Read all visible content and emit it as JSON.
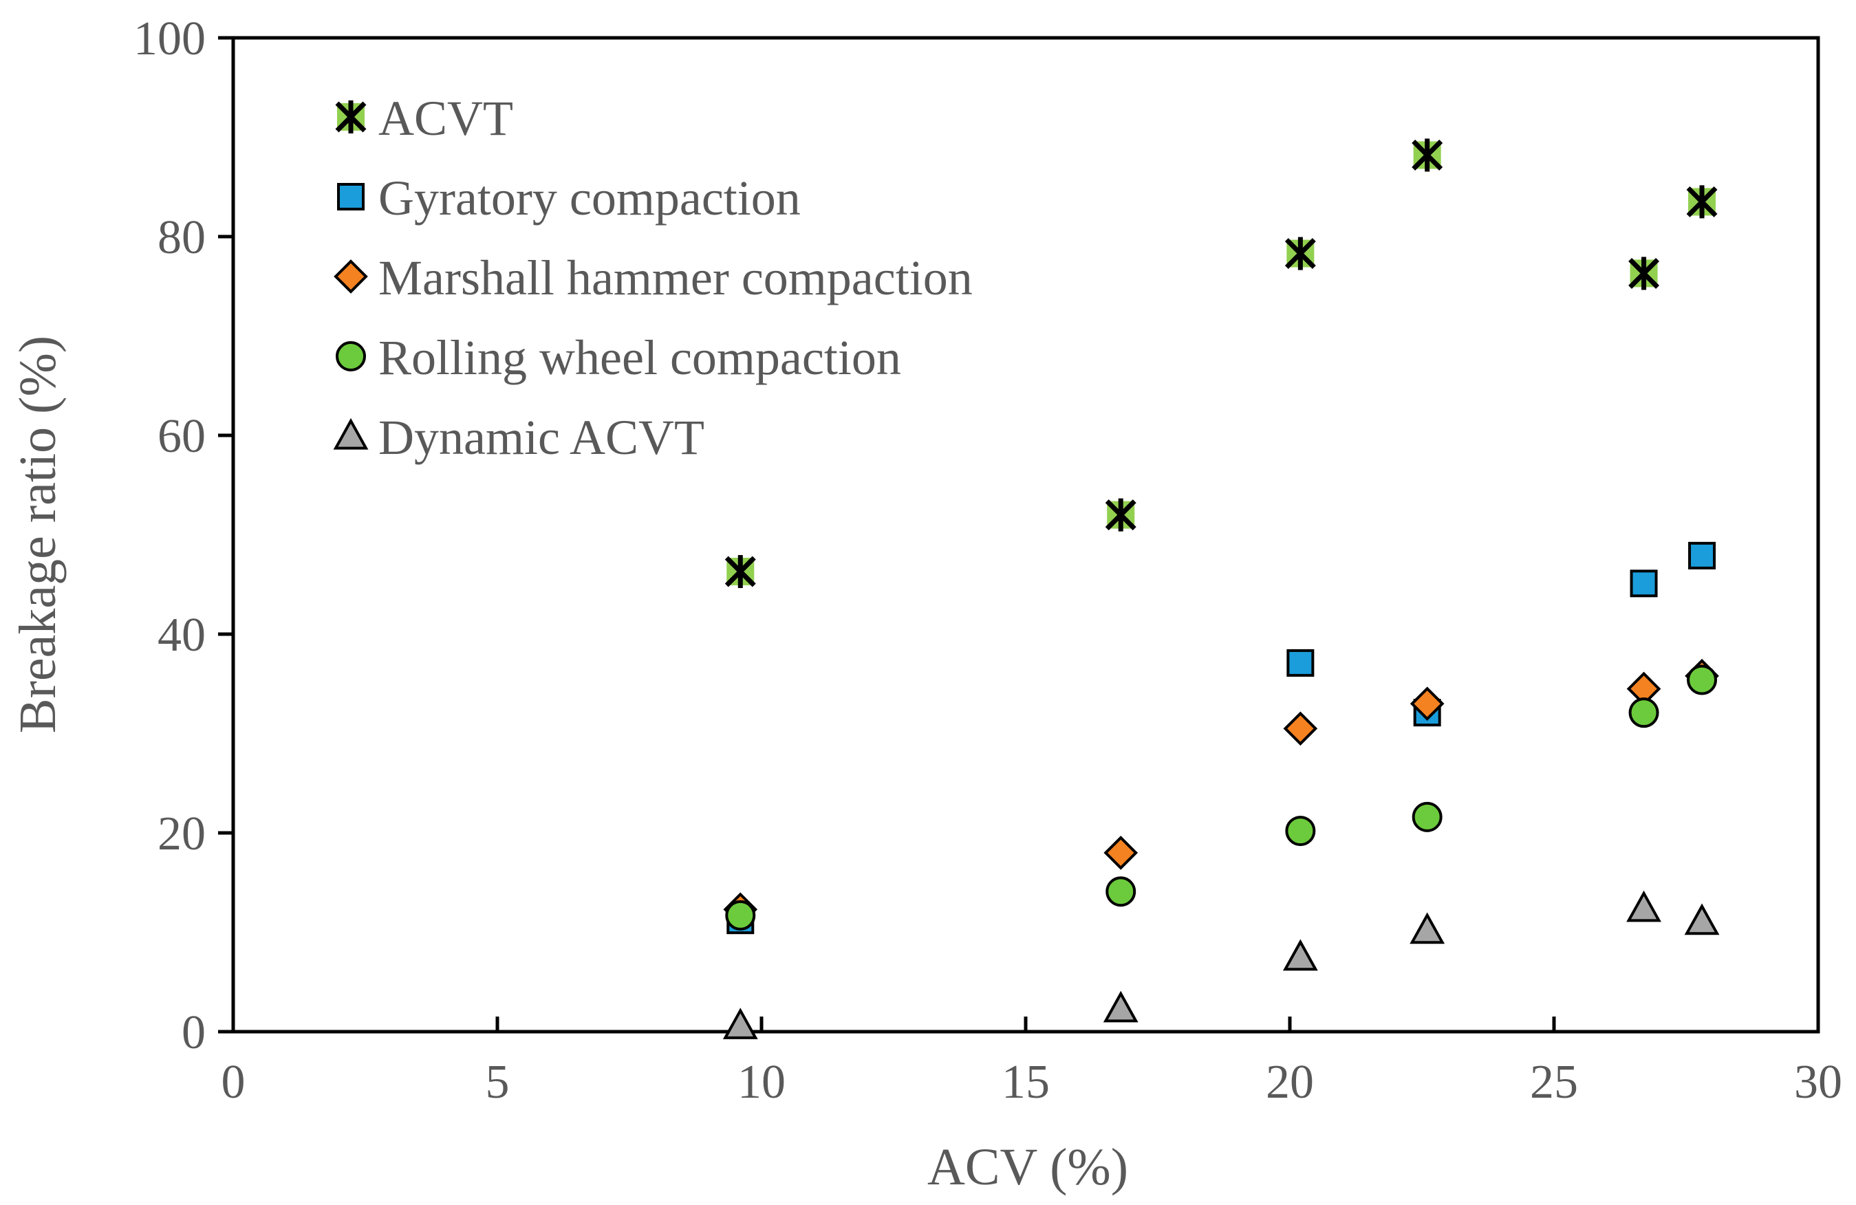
{
  "chart_data": {
    "type": "scatter",
    "title": "",
    "xlabel": "ACV (%)",
    "ylabel": "Breakage ratio (%)",
    "xlim": [
      0,
      30
    ],
    "ylim": [
      0,
      100
    ],
    "xticks": [
      0,
      5,
      10,
      15,
      20,
      25,
      30
    ],
    "yticks": [
      0,
      20,
      40,
      60,
      80,
      100
    ],
    "grid": false,
    "legend_position": "top-left",
    "series": [
      {
        "name": "ACVT",
        "marker": "asterisk",
        "color": "#92D050",
        "edge": "#000000",
        "x": [
          9.6,
          16.8,
          20.2,
          22.6,
          26.7,
          27.8
        ],
        "y": [
          46.3,
          52.0,
          78.3,
          88.2,
          76.3,
          83.5
        ]
      },
      {
        "name": "Gyratory compaction",
        "marker": "square",
        "color": "#1B9DDB",
        "edge": "#000000",
        "x": [
          9.6,
          20.2,
          22.6,
          26.7,
          27.8
        ],
        "y": [
          11.2,
          37.1,
          32.1,
          45.1,
          47.9
        ]
      },
      {
        "name": "Marshall hammer compaction",
        "marker": "diamond",
        "color": "#F58220",
        "edge": "#000000",
        "x": [
          9.6,
          16.8,
          20.2,
          22.6,
          26.7,
          27.8
        ],
        "y": [
          12.3,
          18.0,
          30.5,
          33.0,
          34.5,
          35.8
        ]
      },
      {
        "name": "Rolling wheel compaction",
        "marker": "circle",
        "color": "#6CCB3C",
        "edge": "#000000",
        "x": [
          9.6,
          16.8,
          20.2,
          22.6,
          26.7,
          27.8
        ],
        "y": [
          11.7,
          14.1,
          20.2,
          21.6,
          32.1,
          35.4
        ]
      },
      {
        "name": "Dynamic ACVT",
        "marker": "triangle",
        "color": "#A6A6A6",
        "edge": "#000000",
        "x": [
          9.6,
          16.8,
          20.2,
          22.6,
          26.7,
          27.8
        ],
        "y": [
          0.6,
          2.3,
          7.5,
          10.2,
          12.4,
          11.1
        ]
      }
    ]
  }
}
